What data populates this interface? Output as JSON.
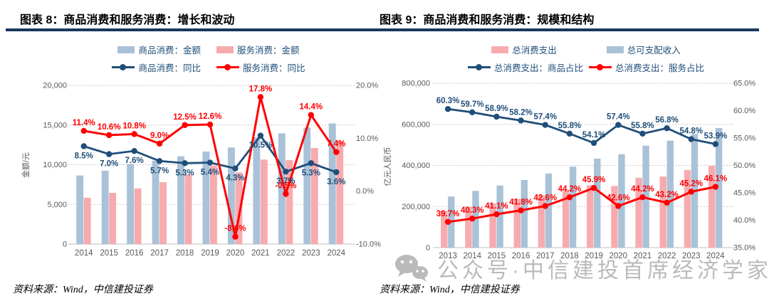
{
  "colors": {
    "barBlue": "#A9C2D8",
    "barPink": "#F7ABAF",
    "lineNavy": "#1F4E79",
    "lineRed": "#FF0000",
    "titleRule": "#17375E",
    "gridline": "#C9C9C9",
    "axisLine": "#BFBFBF",
    "axisText": "#595959",
    "legendText": "#1F4E79",
    "watermark": "#9A9A9A"
  },
  "panels": [
    {
      "title": "图表 8：商品消费和服务消费：增长和波动",
      "legend": {
        "bars": [
          {
            "label": "商品消费：金额",
            "color": "barBlue"
          },
          {
            "label": "服务消费：金额",
            "color": "barPink"
          }
        ],
        "lines": [
          {
            "label": "商品消费：同比",
            "color": "lineNavy"
          },
          {
            "label": "服务消费：同比",
            "color": "lineRed"
          }
        ]
      },
      "source_note": "资料来源：Wind，中信建投证券"
    },
    {
      "title": "图表 9：商品消费和服务消费：规模和结构",
      "legend": {
        "bars": [
          {
            "label": "总消费支出",
            "color": "barPink"
          },
          {
            "label": "总可支配收入",
            "color": "barBlue"
          }
        ],
        "lines": [
          {
            "label": "总消费支出：商品占比",
            "color": "lineNavy"
          },
          {
            "label": "总消费支出：服务占比",
            "color": "lineRed"
          }
        ]
      },
      "source_note": "资料来源：Wind，中信建投证券"
    }
  ],
  "watermark": {
    "icon": "wechat-icon",
    "text": "公众号·中信建投首席经济学家"
  },
  "chart_data": [
    {
      "type": "bar+line",
      "title": "图表 8：商品消费和服务消费：增长和波动",
      "legend_position": "top",
      "grid": "horizontal dotted lines at left-axis ticks",
      "categories": [
        "2014",
        "2015",
        "2016",
        "2017",
        "2018",
        "2019",
        "2020",
        "2021",
        "2022",
        "2023",
        "2024"
      ],
      "left_axis": {
        "title": "金额/元",
        "min": 0,
        "max": 20000,
        "step": 5000,
        "tick_labels": [
          "0",
          "5,000",
          "10,000",
          "15,000",
          "20,000"
        ]
      },
      "right_axis": {
        "min": -10,
        "max": 20,
        "step": 10,
        "tick_labels": [
          "-10.0%",
          "0.0%",
          "10.0%",
          "20.0%"
        ]
      },
      "bar_series": [
        {
          "name": "商品消费：金额",
          "color": "barBlue",
          "axis": "left",
          "values": [
            8650,
            9250,
            10100,
            10520,
            11070,
            11670,
            12170,
            13460,
            13950,
            14680,
            15210
          ]
        },
        {
          "name": "服务消费：金额",
          "color": "barPink",
          "axis": "left",
          "values": [
            5840,
            6460,
            7010,
            7800,
            8780,
            9890,
            9040,
            10650,
            10590,
            12110,
            13020
          ]
        }
      ],
      "line_series": [
        {
          "name": "商品消费：同比",
          "color": "lineNavy",
          "axis": "right",
          "label_pos": "below",
          "values": [
            8.5,
            7.0,
            7.6,
            5.7,
            5.3,
            5.4,
            4.3,
            10.5,
            3.7,
            5.3,
            3.6
          ],
          "labels": [
            "8.5%",
            "7.0%",
            "7.6%",
            "5.7%",
            "5.3%",
            "5.4%",
            "4.3%",
            "10.5%",
            "3.7%",
            "5.3%",
            "3.6%"
          ]
        },
        {
          "name": "服务消费：同比",
          "color": "lineRed",
          "axis": "right",
          "label_pos": "above",
          "values": [
            11.4,
            10.6,
            10.8,
            9.0,
            12.5,
            12.6,
            -8.6,
            17.8,
            -0.5,
            14.4,
            7.4
          ],
          "labels": [
            "11.4%",
            "10.6%",
            "10.8%",
            "9.0%",
            "12.5%",
            "12.6%",
            "-8.6%",
            "17.8%",
            "-0.5%",
            "14.4%",
            "7.4%"
          ]
        }
      ]
    },
    {
      "type": "bar+line",
      "title": "图表 9：商品消费和服务消费：规模和结构",
      "legend_position": "top",
      "grid": "horizontal dotted lines at left-axis ticks",
      "categories": [
        "2013",
        "2014",
        "2015",
        "2016",
        "2017",
        "2018",
        "2019",
        "2020",
        "2021",
        "2022",
        "2023",
        "2024"
      ],
      "left_axis": {
        "title": "亿元人民币",
        "min": 0,
        "max": 800000,
        "step": 200000,
        "tick_labels": [
          "0",
          "200,000",
          "400,000",
          "600,000",
          "800,000"
        ]
      },
      "right_axis": {
        "min": 35,
        "max": 65,
        "step": 5,
        "tick_labels": [
          "35.0%",
          "40.0%",
          "45.0%",
          "50.0%",
          "55.0%",
          "60.0%",
          "65.0%"
        ]
      },
      "bar_series": [
        {
          "name": "总消费支出",
          "color": "barPink",
          "axis": "left",
          "values": [
            180000,
            198000,
            216000,
            237000,
            255000,
            277000,
            304000,
            300000,
            340000,
            346000,
            378000,
            398000
          ]
        },
        {
          "name": "总可支配收入",
          "color": "barBlue",
          "axis": "left",
          "values": [
            249000,
            276000,
            302000,
            329000,
            361000,
            394000,
            433000,
            455000,
            496000,
            521000,
            553000,
            582000
          ]
        }
      ],
      "line_series": [
        {
          "name": "总消费支出：商品占比",
          "color": "lineNavy",
          "axis": "right",
          "label_pos": "above",
          "values": [
            60.3,
            59.7,
            58.9,
            58.2,
            57.4,
            55.8,
            54.1,
            57.4,
            55.8,
            56.8,
            54.8,
            53.9
          ],
          "labels": [
            "60.3%",
            "59.7%",
            "58.9%",
            "58.2%",
            "57.4%",
            "55.8%",
            "54.1%",
            "57.4%",
            "55.8%",
            "56.8%",
            "54.8%",
            "53.9%"
          ]
        },
        {
          "name": "总消费支出：服务占比",
          "color": "lineRed",
          "axis": "right",
          "label_pos": "above",
          "values": [
            39.7,
            40.3,
            41.1,
            41.8,
            42.6,
            44.2,
            45.9,
            42.6,
            44.2,
            43.2,
            45.2,
            46.1
          ],
          "labels": [
            "39.7%",
            "40.3%",
            "41.1%",
            "41.8%",
            "42.6%",
            "44.2%",
            "45.9%",
            "42.6%",
            "44.2%",
            "43.2%",
            "45.2%",
            "46.1%"
          ]
        }
      ]
    }
  ]
}
